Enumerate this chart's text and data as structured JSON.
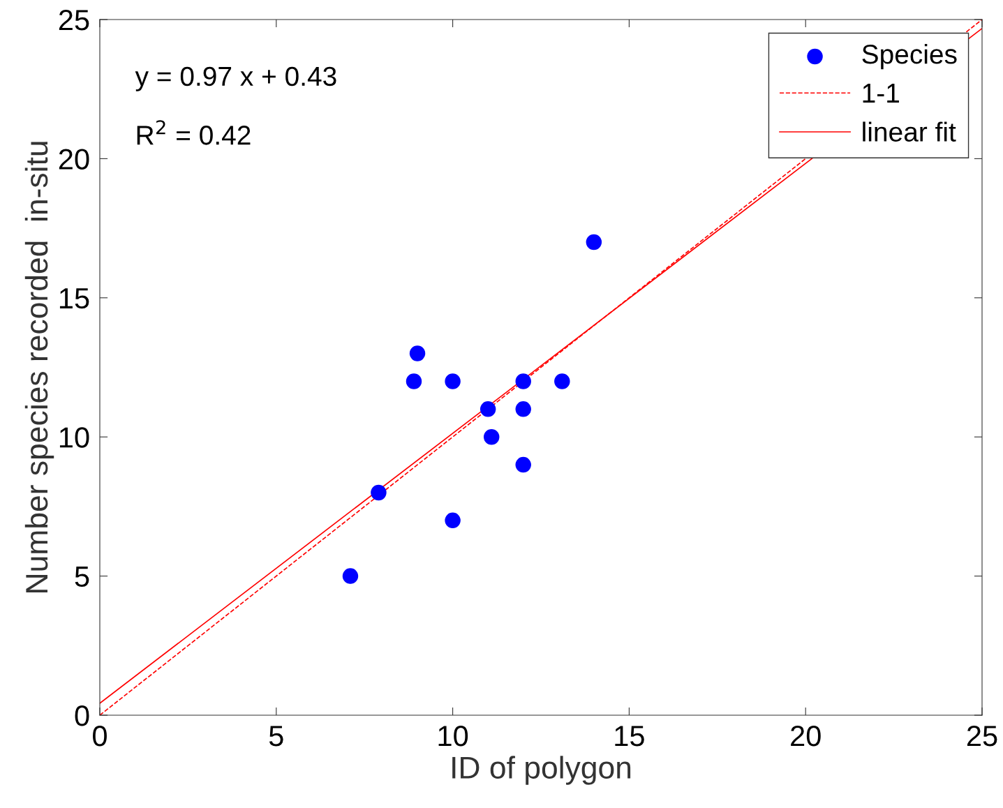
{
  "chart_data": {
    "type": "scatter",
    "xlabel": "ID of polygon",
    "ylabel": "Number species recorded  in-situ",
    "xlim": [
      0,
      25
    ],
    "ylim": [
      0,
      25
    ],
    "xticks": [
      0,
      5,
      10,
      15,
      20,
      25
    ],
    "yticks": [
      0,
      5,
      10,
      15,
      20,
      25
    ],
    "grid": false,
    "legend": "top right",
    "series": [
      {
        "name": "Species",
        "marker": "circle",
        "color": "#0000ff",
        "x": [
          7.1,
          7.9,
          8.9,
          9.0,
          10.0,
          10.0,
          11.0,
          11.1,
          12.0,
          12.0,
          12.0,
          13.1,
          14.0
        ],
        "values": [
          5,
          8,
          12,
          13,
          12,
          7,
          11,
          10,
          12,
          11,
          9,
          12,
          17
        ]
      },
      {
        "name": "1-1",
        "type": "line",
        "line_style": "dashed",
        "marker": "none",
        "color": "#ff0000",
        "x": [
          0,
          25
        ],
        "values": [
          0,
          25
        ]
      },
      {
        "name": "linear fit",
        "type": "line",
        "line_style": "solid",
        "marker": "none",
        "color": "#ff0000",
        "x": [
          0,
          25
        ],
        "values": [
          0.43,
          24.68
        ]
      }
    ],
    "annotations": [
      "y = 0.97 x + 0.43",
      "R$^{2}$ = 0.42"
    ]
  }
}
